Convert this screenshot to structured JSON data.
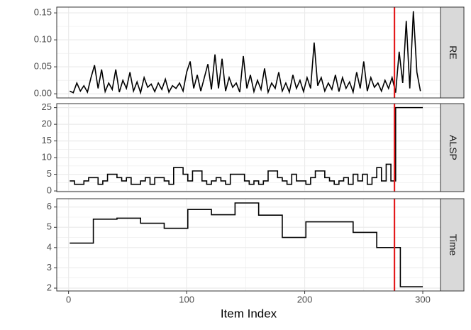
{
  "chart_data": [
    {
      "type": "line",
      "facet": "RE",
      "xlim": [
        -10,
        315
      ],
      "ylim": [
        -0.0077,
        0.1607
      ],
      "xticks": [
        0,
        100,
        200,
        300
      ],
      "minor_xticks": [
        50,
        150,
        250
      ],
      "yticks": [
        {
          "value": 0,
          "label": "0.00"
        },
        {
          "value": 0.05,
          "label": "0.05"
        },
        {
          "value": 0.1,
          "label": "0.10"
        },
        {
          "value": 0.15,
          "label": "0.15"
        }
      ],
      "minor_yticks": [
        0.025,
        0.075,
        0.125
      ],
      "grid": true,
      "vline": {
        "x": 276,
        "color": "#e41a1c"
      },
      "series": [
        {
          "color": "#000000",
          "step": false,
          "x": [
            1,
            4,
            7,
            10,
            13,
            16,
            19,
            22,
            25,
            28,
            31,
            34,
            37,
            40,
            43,
            46,
            49,
            52,
            55,
            58,
            61,
            64,
            67,
            70,
            73,
            76,
            79,
            82,
            85,
            88,
            91,
            94,
            97,
            100,
            103,
            106,
            109,
            112,
            115,
            118,
            121,
            124,
            127,
            130,
            133,
            136,
            139,
            142,
            145,
            148,
            151,
            154,
            157,
            160,
            163,
            166,
            169,
            172,
            175,
            178,
            181,
            184,
            187,
            190,
            193,
            196,
            199,
            202,
            205,
            208,
            211,
            214,
            217,
            220,
            223,
            226,
            229,
            232,
            235,
            238,
            241,
            244,
            247,
            250,
            253,
            256,
            259,
            262,
            265,
            268,
            271,
            274,
            277,
            280,
            283,
            286,
            289,
            292,
            295,
            298
          ],
          "values": [
            0.005,
            0.002,
            0.02,
            0.005,
            0.015,
            0.003,
            0.03,
            0.053,
            0.01,
            0.045,
            0.004,
            0.02,
            0.008,
            0.045,
            0.003,
            0.025,
            0.01,
            0.04,
            0.005,
            0.022,
            0.002,
            0.03,
            0.012,
            0.018,
            0.004,
            0.02,
            0.008,
            0.027,
            0.003,
            0.015,
            0.01,
            0.02,
            0.005,
            0.04,
            0.06,
            0.01,
            0.035,
            0.005,
            0.03,
            0.055,
            0.008,
            0.073,
            0.01,
            0.065,
            0.005,
            0.03,
            0.012,
            0.02,
            0.003,
            0.07,
            0.01,
            0.035,
            0.004,
            0.025,
            0.008,
            0.047,
            0.003,
            0.02,
            0.01,
            0.04,
            0.005,
            0.02,
            0.003,
            0.035,
            0.01,
            0.025,
            0.004,
            0.03,
            0.01,
            0.095,
            0.015,
            0.03,
            0.005,
            0.02,
            0.008,
            0.035,
            0.004,
            0.03,
            0.01,
            0.022,
            0.003,
            0.04,
            0.01,
            0.06,
            0.005,
            0.03,
            0.012,
            0.02,
            0.005,
            0.025,
            0.01,
            0.03,
            0.002,
            0.078,
            0.02,
            0.135,
            0.01,
            0.153,
            0.04,
            0.005
          ]
        }
      ]
    },
    {
      "type": "line",
      "facet": "ALSP",
      "xlim": [
        -10,
        315
      ],
      "ylim": [
        -0.2,
        26.2
      ],
      "xticks": [
        0,
        100,
        200,
        300
      ],
      "minor_xticks": [
        50,
        150,
        250
      ],
      "yticks": [
        0,
        5,
        10,
        15,
        20,
        25
      ],
      "minor_yticks": [
        2.5,
        7.5,
        12.5,
        17.5,
        22.5
      ],
      "grid": true,
      "vline": {
        "x": 276,
        "color": "#e41a1c"
      },
      "series": [
        {
          "color": "#000000",
          "step": true,
          "x": [
            1,
            5,
            9,
            13,
            17,
            21,
            25,
            29,
            33,
            37,
            41,
            45,
            49,
            53,
            57,
            61,
            65,
            69,
            73,
            77,
            81,
            85,
            89,
            93,
            97,
            101,
            105,
            109,
            113,
            117,
            121,
            125,
            129,
            133,
            137,
            141,
            145,
            149,
            153,
            157,
            161,
            165,
            169,
            173,
            177,
            181,
            185,
            189,
            193,
            197,
            201,
            205,
            209,
            213,
            217,
            221,
            225,
            229,
            233,
            237,
            241,
            245,
            249,
            253,
            257,
            261,
            265,
            269,
            273,
            277,
            300
          ],
          "values": [
            3,
            2,
            2,
            3,
            4,
            4,
            2,
            3,
            5,
            5,
            4,
            3,
            4,
            2,
            2,
            3,
            4,
            2,
            4,
            4,
            3,
            2,
            7,
            7,
            5,
            3,
            6,
            6,
            3,
            2,
            3,
            4,
            3,
            2,
            5,
            5,
            5,
            3,
            2,
            3,
            2,
            3,
            6,
            6,
            4,
            3,
            2,
            5,
            3,
            3,
            2,
            4,
            6,
            6,
            4,
            3,
            2,
            3,
            4,
            2,
            5,
            3,
            5,
            2,
            4,
            7,
            3,
            8,
            3,
            25,
            25
          ]
        }
      ]
    },
    {
      "type": "line",
      "facet": "Time",
      "xlim": [
        -10,
        315
      ],
      "ylim": [
        1.86,
        6.41
      ],
      "xticks": [
        0,
        100,
        200,
        300
      ],
      "minor_xticks": [
        50,
        150,
        250
      ],
      "yticks": [
        2,
        3,
        4,
        5,
        6
      ],
      "minor_yticks": [
        2.5,
        3.5,
        4.5,
        5.5
      ],
      "grid": true,
      "xlabel": "Item Index",
      "vline": {
        "x": 276,
        "color": "#e41a1c"
      },
      "series": [
        {
          "color": "#000000",
          "step": true,
          "x": [
            1,
            21,
            41,
            61,
            81,
            101,
            121,
            141,
            161,
            181,
            201,
            241,
            261,
            281,
            300
          ],
          "values": [
            4.22,
            5.4,
            5.45,
            5.2,
            4.95,
            5.88,
            5.62,
            6.2,
            5.6,
            4.5,
            5.27,
            4.75,
            4.0,
            2.07,
            2.07
          ]
        }
      ]
    }
  ]
}
